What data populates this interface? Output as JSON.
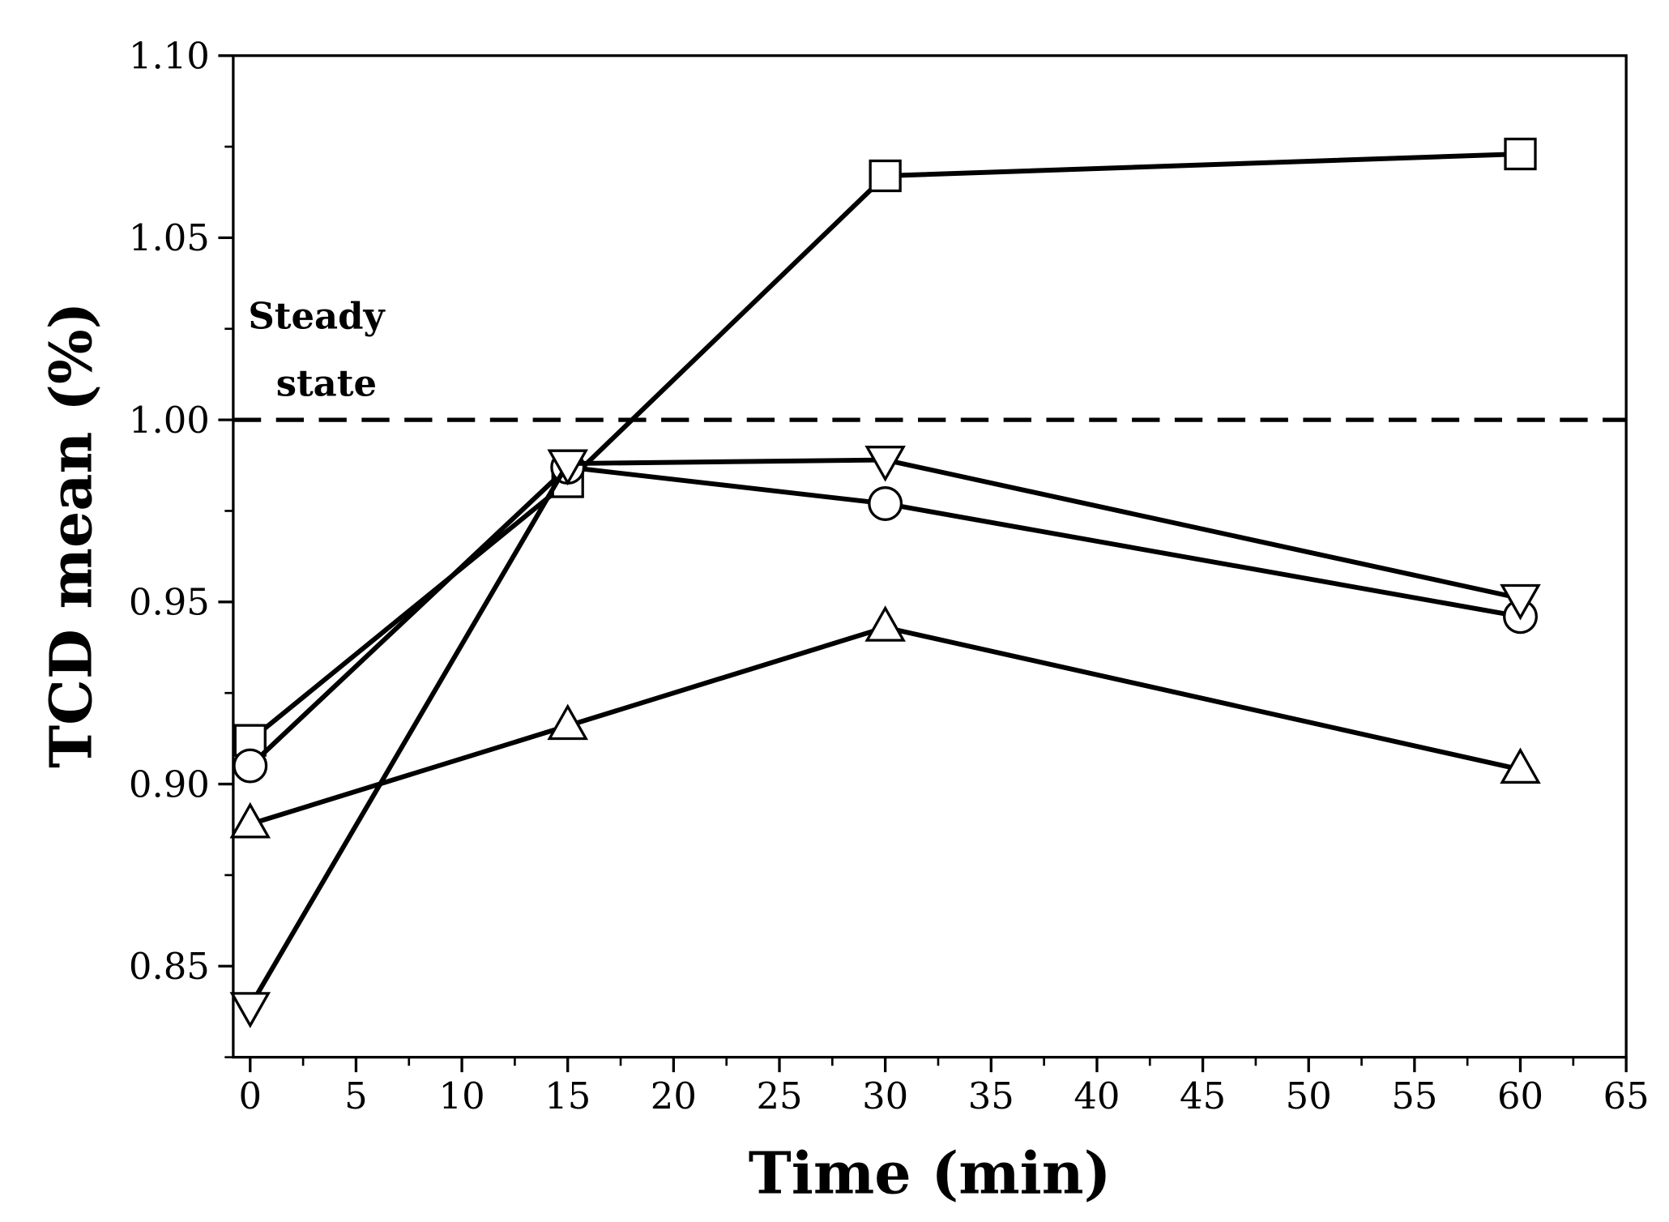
{
  "chart_data": {
    "type": "line",
    "title": "",
    "xlabel": "Time (min)",
    "ylabel": "TCD mean (%)",
    "xlim": [
      -0.8,
      65
    ],
    "ylim": [
      0.825,
      1.1
    ],
    "xticks": [
      0,
      5,
      10,
      15,
      20,
      25,
      30,
      35,
      40,
      45,
      50,
      55,
      60,
      65
    ],
    "yticks": [
      0.85,
      0.9,
      0.95,
      1.0,
      1.05,
      1.1
    ],
    "ytick_labels": [
      "0.85",
      "0.90",
      "0.95",
      "1.00",
      "1.05",
      "1.10"
    ],
    "grid": false,
    "x": [
      0,
      15,
      30,
      60
    ],
    "series": [
      {
        "name": "square",
        "marker": "square",
        "values": [
          0.912,
          0.983,
          1.067,
          1.073
        ]
      },
      {
        "name": "circle",
        "marker": "circle",
        "values": [
          0.905,
          0.987,
          0.977,
          0.946
        ]
      },
      {
        "name": "triangle-down",
        "marker": "triangle-down",
        "values": [
          0.839,
          0.988,
          0.989,
          0.951
        ]
      },
      {
        "name": "triangle-up",
        "marker": "triangle-up",
        "values": [
          0.889,
          0.916,
          0.943,
          0.904
        ]
      }
    ],
    "reference_line": {
      "y": 1.0,
      "style": "dashed"
    },
    "annotations": [
      "Steady",
      "state"
    ],
    "line_color": "#000000"
  }
}
